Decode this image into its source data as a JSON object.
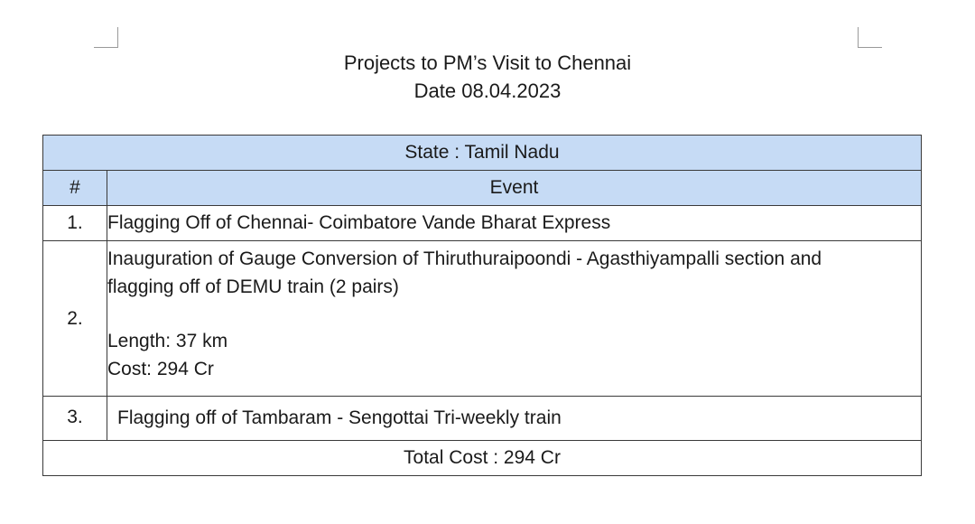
{
  "document": {
    "title": "Projects to PM’s Visit to Chennai",
    "date_line": "Date 08.04.2023"
  },
  "table": {
    "state_header": "State : Tamil Nadu",
    "columns": [
      "#",
      "Event"
    ],
    "rows": [
      {
        "num": "1.",
        "event_lines": [
          "Flagging Off of Chennai- Coimbatore Vande Bharat Express"
        ]
      },
      {
        "num": "2.",
        "event_lines": [
          "Inauguration of Gauge Conversion of Thiruthuraipoondi - Agasthiyampalli section and",
          "flagging off of DEMU train (2 pairs)"
        ],
        "length": "Length: 37 km",
        "cost": "Cost: 294 Cr"
      },
      {
        "num": "3.",
        "event_lines": [
          "Flagging off of Tambaram - Sengottai Tri-weekly train"
        ]
      }
    ],
    "total": "Total Cost : 294 Cr"
  },
  "colors": {
    "header_fill": "#c6dbf5",
    "border": "#3a3a3a",
    "text": "#1a1a1a",
    "corner_marks": "#9a9a9a"
  }
}
